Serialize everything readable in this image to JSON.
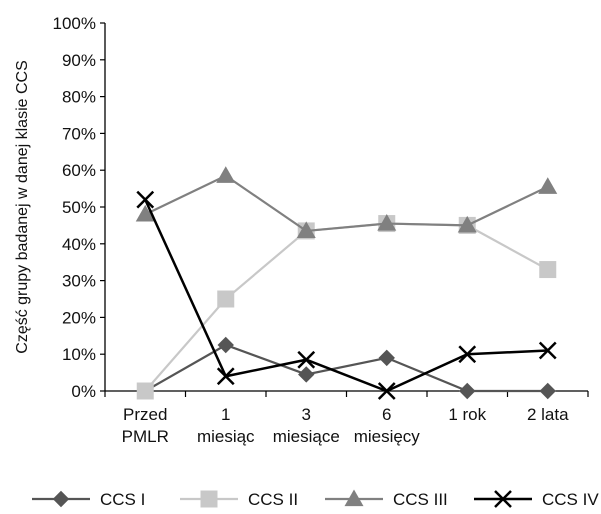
{
  "chart_data": {
    "type": "line",
    "title": "",
    "xlabel": "",
    "ylabel": "Część grupy badanej w danej klasie CCS",
    "categories": [
      [
        "Przed",
        "PMLR"
      ],
      [
        "1",
        "miesiąc"
      ],
      [
        "3",
        "miesiące"
      ],
      [
        "6",
        "miesięcy"
      ],
      [
        "1 rok"
      ],
      [
        "2 lata"
      ]
    ],
    "ylim": [
      0,
      100
    ],
    "yticks": [
      0,
      10,
      20,
      30,
      40,
      50,
      60,
      70,
      80,
      90,
      100
    ],
    "ytick_labels": [
      "0%",
      "10%",
      "20%",
      "30%",
      "40%",
      "50%",
      "60%",
      "70%",
      "80%",
      "90%",
      "100%"
    ],
    "grid": false,
    "legend_position": "bottom",
    "series": [
      {
        "name": "CCS I",
        "color": "#555555",
        "marker": "diamond",
        "values": [
          0,
          12.5,
          4.5,
          9,
          0,
          0
        ]
      },
      {
        "name": "CCS II",
        "color": "#c8c8c8",
        "marker": "square",
        "values": [
          0,
          25,
          43.5,
          45.5,
          45,
          33
        ]
      },
      {
        "name": "CCS III",
        "color": "#808080",
        "marker": "triangle",
        "values": [
          48,
          58.5,
          43.5,
          45.5,
          45,
          55.5
        ]
      },
      {
        "name": "CCS IV",
        "color": "#000000",
        "marker": "x",
        "values": [
          52,
          4,
          8.5,
          0,
          10,
          11
        ]
      }
    ]
  }
}
